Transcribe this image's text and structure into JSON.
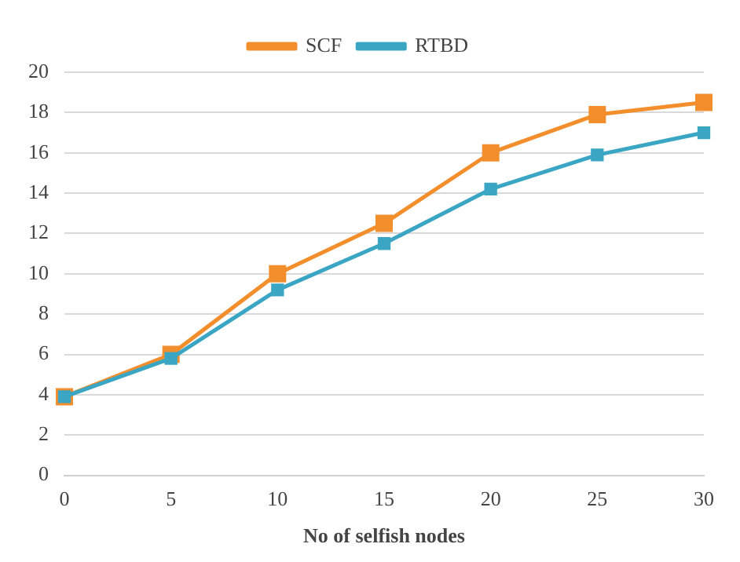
{
  "chart_data": {
    "type": "line",
    "xlabel": "No of selfish nodes",
    "categories": [
      "0",
      "5",
      "10",
      "15",
      "20",
      "25",
      "30"
    ],
    "series": [
      {
        "name": "SCF",
        "color": "#f28e2b",
        "values": [
          3.9,
          6,
          10,
          12.5,
          16,
          17.9,
          18.5
        ]
      },
      {
        "name": "RTBD",
        "color": "#3aa6c4",
        "values": [
          3.9,
          5.8,
          9.2,
          11.5,
          14.2,
          15.9,
          17
        ]
      }
    ],
    "ylim": [
      0,
      20
    ],
    "yticks": [
      0,
      2,
      4,
      6,
      8,
      10,
      12,
      14,
      16,
      18,
      20
    ],
    "grid": "y",
    "legend": "top",
    "marker": "square",
    "line_style": "solid"
  }
}
